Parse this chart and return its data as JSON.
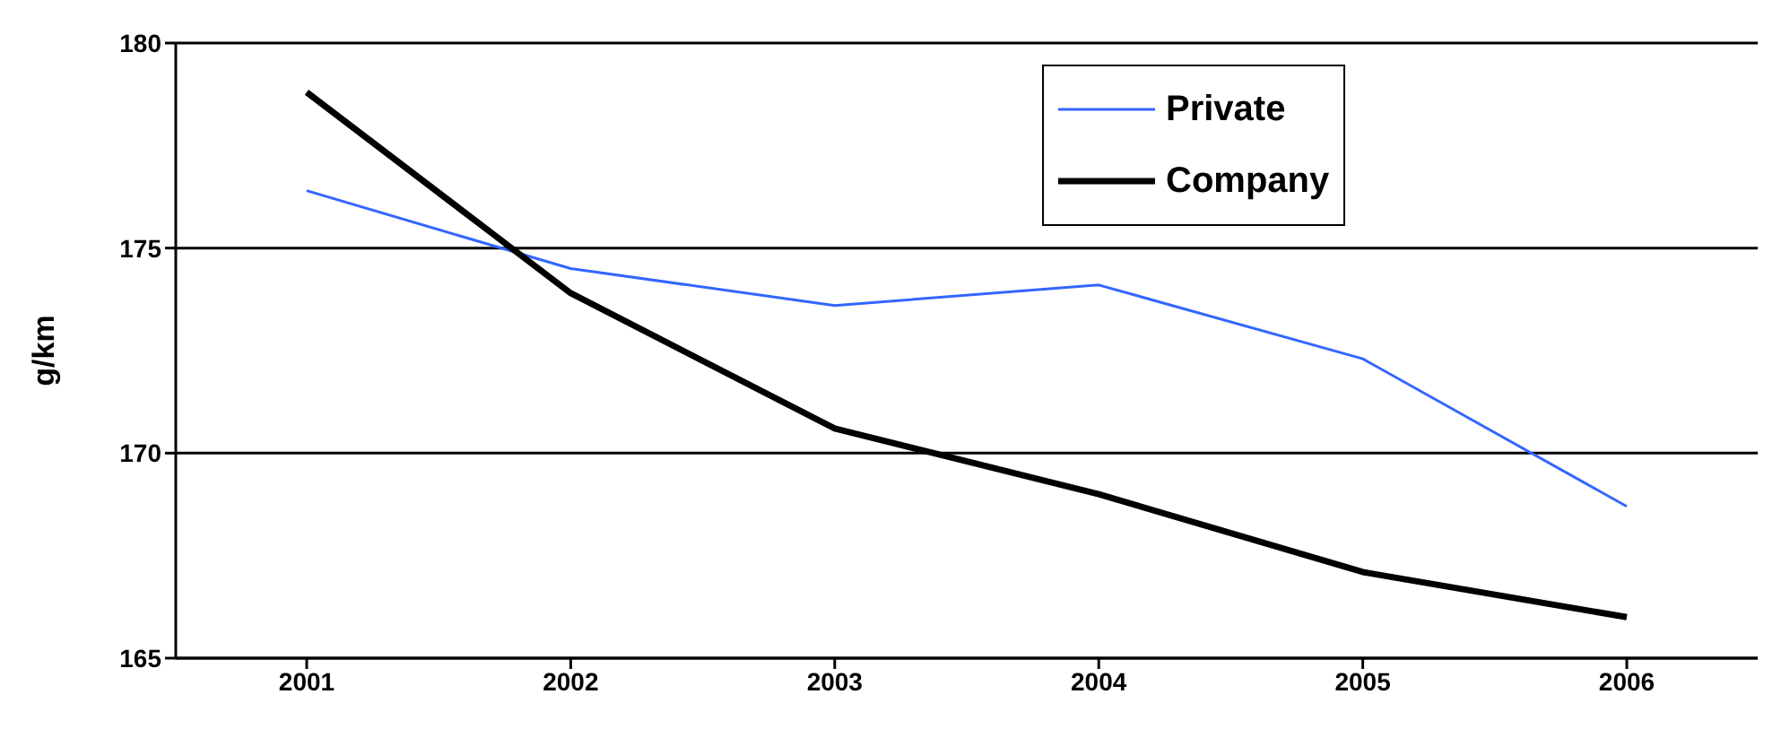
{
  "chart_data": {
    "type": "line",
    "ylabel": "g/km",
    "categories": [
      "2001",
      "2002",
      "2003",
      "2004",
      "2005",
      "2006"
    ],
    "series": [
      {
        "name": "Private",
        "color": "#3366ff",
        "values": [
          176.4,
          174.5,
          173.6,
          174.1,
          172.3,
          168.7
        ]
      },
      {
        "name": "Company",
        "color": "#000000",
        "values": [
          178.8,
          173.9,
          170.6,
          169.0,
          167.1,
          166.0
        ]
      }
    ],
    "ylim": [
      165,
      180
    ],
    "yticks": [
      165,
      170,
      175,
      180
    ],
    "grid": "y",
    "legend": "top",
    "marker": "none",
    "line_style": "solid"
  }
}
